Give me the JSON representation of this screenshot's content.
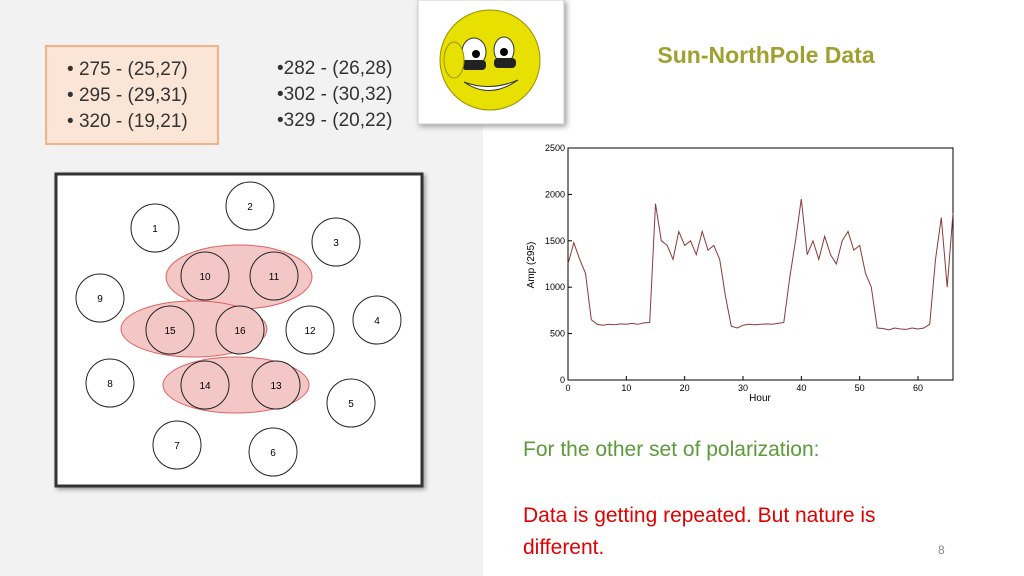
{
  "slide": {
    "title": "Sun-NorthPole Data",
    "list_left": [
      "275 - (25,27)",
      "295 - (29,31)",
      "320 - (19,21)"
    ],
    "list_right": [
      "282 - (26,28)",
      "302 - (30,32)",
      "329 - (20,22)"
    ],
    "nodes": [
      "1",
      "2",
      "3",
      "10",
      "11",
      "9",
      "4",
      "15",
      "16",
      "12",
      "8",
      "14",
      "13",
      "5",
      "7",
      "6"
    ],
    "note": "For the other set of polarization:",
    "remark": "Data is getting repeated. But nature is different.",
    "page_number": "8"
  },
  "chart_data": {
    "type": "line",
    "ylabel": "Amp (295)",
    "xlabel": "Hour",
    "color": "#8b3a3a",
    "x": [
      0,
      1,
      2,
      3,
      4,
      5,
      6,
      7,
      8,
      9,
      10,
      11,
      12,
      13,
      14,
      15,
      16,
      17,
      18,
      19,
      20,
      21,
      22,
      23,
      24,
      25,
      26,
      27,
      28,
      29,
      30,
      31,
      32,
      33,
      34,
      35,
      36,
      37,
      38,
      39,
      40,
      41,
      42,
      43,
      44,
      45,
      46,
      47,
      48,
      49,
      50,
      51,
      52,
      53,
      54,
      55,
      56,
      57,
      58,
      59,
      60,
      61,
      62,
      63,
      64,
      65,
      66
    ],
    "values": [
      1250,
      1480,
      1300,
      1150,
      650,
      600,
      590,
      600,
      595,
      605,
      600,
      610,
      600,
      615,
      620,
      1900,
      1500,
      1450,
      1300,
      1600,
      1450,
      1500,
      1350,
      1600,
      1400,
      1450,
      1300,
      900,
      580,
      560,
      590,
      600,
      595,
      600,
      605,
      600,
      610,
      620,
      1100,
      1500,
      1950,
      1350,
      1500,
      1300,
      1550,
      1350,
      1250,
      1500,
      1600,
      1400,
      1450,
      1150,
      1000,
      560,
      555,
      540,
      560,
      550,
      545,
      560,
      550,
      560,
      600,
      1300,
      1750,
      1000,
      1800
    ],
    "xlim": [
      0,
      66
    ],
    "ylim": [
      0,
      2500
    ],
    "xticks": [
      0,
      10,
      20,
      30,
      40,
      50,
      60
    ],
    "yticks": [
      0,
      500,
      1000,
      1500,
      2000,
      2500
    ]
  }
}
